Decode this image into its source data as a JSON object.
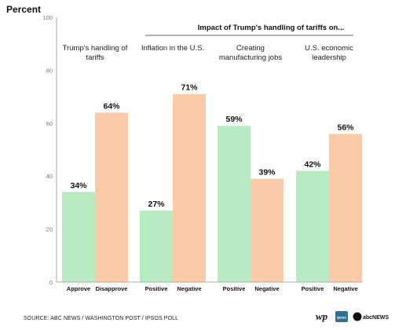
{
  "chart_data": {
    "type": "bar",
    "ylabel": "Percent",
    "ylim": [
      0,
      100
    ],
    "yticks": [
      0,
      20,
      40,
      60,
      80,
      100
    ],
    "super_title": "Impact of Trump's handling of tariffs on...",
    "groups": [
      {
        "title": [
          "Trump's handling of",
          "tariffs"
        ],
        "bars": [
          {
            "label": "Approve",
            "value": 34,
            "value_text": "34%",
            "kind": "positive"
          },
          {
            "label": "Disapprove",
            "value": 64,
            "value_text": "64%",
            "kind": "negative"
          }
        ]
      },
      {
        "title": [
          "Inflation in the U.S."
        ],
        "bars": [
          {
            "label": "Positive",
            "value": 27,
            "value_text": "27%",
            "kind": "positive"
          },
          {
            "label": "Negative",
            "value": 71,
            "value_text": "71%",
            "kind": "negative"
          }
        ]
      },
      {
        "title": [
          "Creating",
          "manufacturing jobs"
        ],
        "bars": [
          {
            "label": "Positive",
            "value": 59,
            "value_text": "59%",
            "kind": "positive"
          },
          {
            "label": "Negative",
            "value": 39,
            "value_text": "39%",
            "kind": "negative"
          }
        ]
      },
      {
        "title": [
          "U.S. economic",
          "leadership"
        ],
        "bars": [
          {
            "label": "Positive",
            "value": 42,
            "value_text": "42%",
            "kind": "positive"
          },
          {
            "label": "Negative",
            "value": 56,
            "value_text": "56%",
            "kind": "negative"
          }
        ]
      }
    ],
    "colors": {
      "positive": "#b8ebc2",
      "negative": "#f9cba9"
    },
    "grid": false
  },
  "source": "SOURCE: ABC NEWS / WASHINGTON POST / IPSOS POLL",
  "logos": [
    {
      "name": "washington-post-logo",
      "text": "wp"
    },
    {
      "name": "ipsos-logo",
      "text": "ipsos"
    },
    {
      "name": "abc-news-logo",
      "text": "abcNEWS"
    }
  ]
}
